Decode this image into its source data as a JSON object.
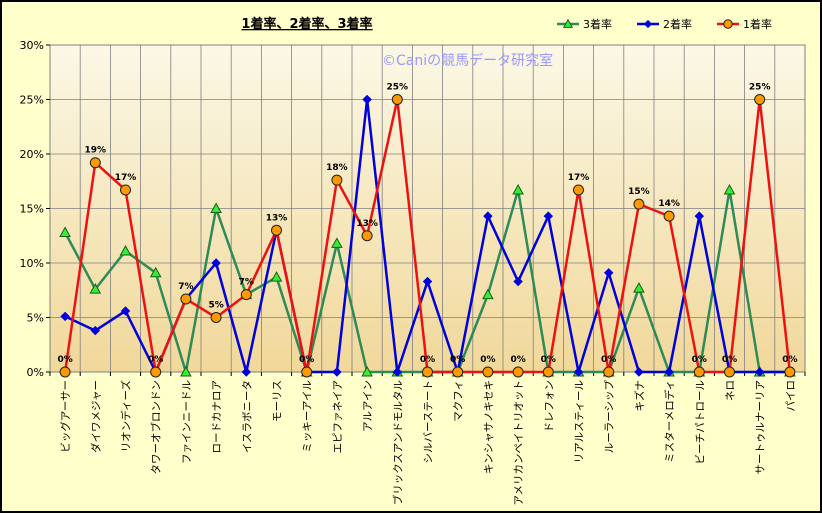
{
  "colors": {
    "background": "#ffffcc",
    "plot_top": "#fbf8e6",
    "plot_bottom": "#f1d89a",
    "grid": "#808080",
    "watermark": "#9999ff",
    "series_3": "#2e8b57",
    "series_3_marker": "#33ee33",
    "series_2": "#0000dd",
    "series_1": "#ee1111",
    "series_1_marker": "#ff9900"
  },
  "watermark": "©Caniの競馬データ研究室",
  "chart_data": {
    "type": "line",
    "title": "1着率、2着率、3着率",
    "xlabel": "",
    "ylabel": "",
    "ylim": [
      0,
      30
    ],
    "y_ticks": [
      "0%",
      "5%",
      "10%",
      "15%",
      "20%",
      "25%",
      "30%"
    ],
    "grid": true,
    "legend": "top-right",
    "categories": [
      "ビッグアーサー",
      "ダイワメジャー",
      "リオンディーズ",
      "タワーオブロンドン",
      "ファインニードル",
      "ロードカナロア",
      "イスラボニータ",
      "モーリス",
      "ミッキーアイル",
      "エピファネイア",
      "アルアイン",
      "ブリックスアンドモルタル",
      "シルバーステート",
      "マクフィ",
      "キンシャサノキセキ",
      "アメリカンペイトリオット",
      "ドレフォン",
      "リアルスティール",
      "ルーラーシップ",
      "キズナ",
      "ミスターメロディ",
      "ビーチパトロール",
      "ネロ",
      "サートゥルナーリア",
      "パイロ"
    ],
    "series": [
      {
        "name": "3着率",
        "values": [
          12.8,
          7.6,
          11.1,
          9.1,
          0,
          15.0,
          7.1,
          8.7,
          0,
          11.8,
          0,
          0,
          0,
          0,
          7.1,
          16.7,
          0,
          0,
          0,
          7.7,
          0,
          0,
          16.7,
          0,
          0
        ]
      },
      {
        "name": "2着率",
        "values": [
          5.1,
          3.8,
          5.6,
          0,
          6.7,
          10.0,
          0,
          13.0,
          0,
          0,
          25.0,
          0,
          8.3,
          0,
          14.3,
          8.3,
          14.3,
          0,
          9.1,
          0,
          0,
          14.3,
          0,
          0,
          0
        ]
      },
      {
        "name": "1着率",
        "values": [
          0,
          19.2,
          16.7,
          0,
          6.7,
          5.0,
          7.1,
          13.0,
          0,
          17.6,
          12.5,
          25.0,
          0,
          0,
          0,
          0,
          0,
          16.7,
          0,
          15.4,
          14.3,
          0,
          0,
          25.0,
          0
        ]
      }
    ],
    "data_labels_1": [
      {
        "index": 0,
        "text": "0%"
      },
      {
        "index": 1,
        "text": "19%"
      },
      {
        "index": 2,
        "text": "17%"
      },
      {
        "index": 3,
        "text": "0%"
      },
      {
        "index": 4,
        "text": "7%"
      },
      {
        "index": 5,
        "text": "5%"
      },
      {
        "index": 6,
        "text": "7%"
      },
      {
        "index": 7,
        "text": "13%"
      },
      {
        "index": 8,
        "text": "0%"
      },
      {
        "index": 9,
        "text": "18%"
      },
      {
        "index": 10,
        "text": "13%"
      },
      {
        "index": 11,
        "text": "25%"
      },
      {
        "index": 12,
        "text": "0%"
      },
      {
        "index": 13,
        "text": "0%"
      },
      {
        "index": 14,
        "text": "0%"
      },
      {
        "index": 15,
        "text": "0%"
      },
      {
        "index": 16,
        "text": "0%"
      },
      {
        "index": 17,
        "text": "17%"
      },
      {
        "index": 18,
        "text": "0%"
      },
      {
        "index": 19,
        "text": "15%"
      },
      {
        "index": 20,
        "text": "14%"
      },
      {
        "index": 21,
        "text": "0%"
      },
      {
        "index": 22,
        "text": "0%"
      },
      {
        "index": 23,
        "text": "25%"
      },
      {
        "index": 24,
        "text": "0%"
      }
    ]
  }
}
